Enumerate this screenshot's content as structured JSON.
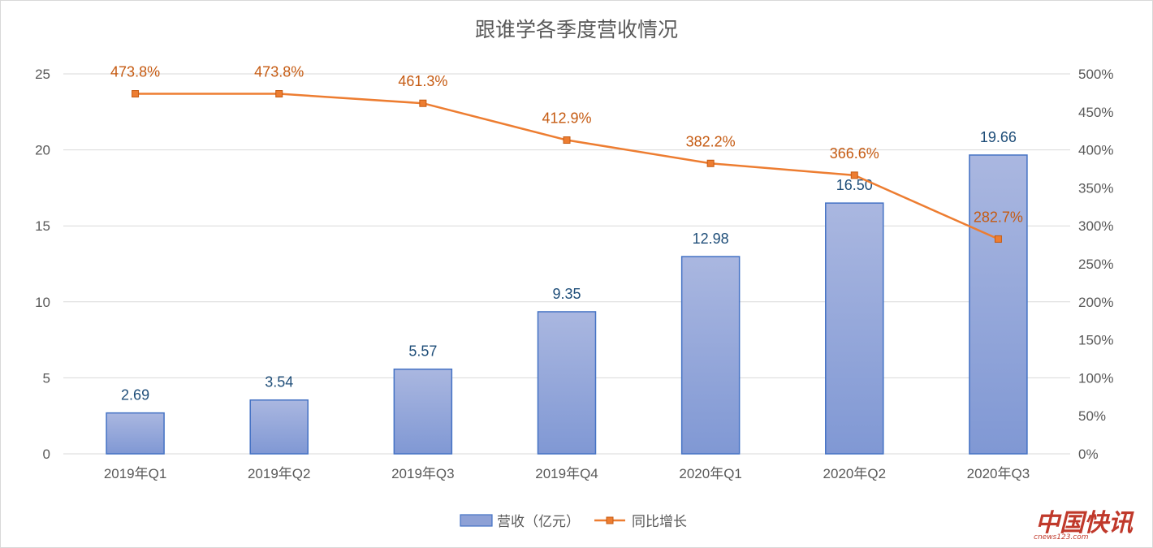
{
  "chart_data": {
    "type": "bar",
    "title": "跟谁学各季度营收情况",
    "categories": [
      "2019年Q1",
      "2019年Q2",
      "2019年Q3",
      "2019年Q4",
      "2020年Q1",
      "2020年Q2",
      "2020年Q3"
    ],
    "series": [
      {
        "name": "营收（亿元）",
        "type": "bar",
        "axis": "left",
        "values": [
          2.69,
          3.54,
          5.57,
          9.35,
          12.98,
          16.5,
          19.66
        ],
        "labels": [
          "2.69",
          "3.54",
          "5.57",
          "9.35",
          "12.98",
          "16.50",
          "19.66"
        ],
        "color": "#8ea1d6"
      },
      {
        "name": "同比增长",
        "type": "line",
        "axis": "right",
        "values": [
          473.8,
          473.8,
          461.3,
          412.9,
          382.2,
          366.6,
          282.7
        ],
        "labels": [
          "473.8%",
          "473.8%",
          "461.3%",
          "412.9%",
          "382.2%",
          "366.6%",
          "282.7%"
        ],
        "color": "#ed7d31"
      }
    ],
    "y_left": {
      "ylim": [
        0,
        25
      ],
      "ticks": [
        "0",
        "5",
        "10",
        "15",
        "20",
        "25"
      ]
    },
    "y_right": {
      "ylim": [
        0,
        500
      ],
      "ticks": [
        "0%",
        "50%",
        "100%",
        "150%",
        "200%",
        "250%",
        "300%",
        "350%",
        "400%",
        "450%",
        "500%"
      ]
    },
    "grid": true,
    "legend": "bottom-center"
  },
  "watermark": {
    "text": "中国快讯",
    "sub": "cnews123.com"
  }
}
